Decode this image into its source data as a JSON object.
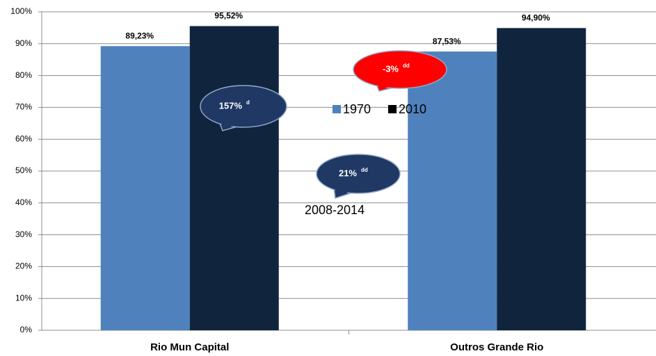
{
  "chart_data": {
    "type": "bar",
    "categories": [
      "Rio Mun Capital",
      "Outros Grande Rio"
    ],
    "series": [
      {
        "name": "1970",
        "color": "#4f81bd",
        "values": [
          89.23,
          87.53
        ],
        "value_labels": [
          "89,23%",
          "87,53%"
        ]
      },
      {
        "name": "2010",
        "color": "#10243e",
        "values": [
          95.52,
          94.9
        ],
        "value_labels": [
          "95,52%",
          "94,90%"
        ]
      }
    ],
    "ylim": [
      0,
      100
    ],
    "yticks": [
      {
        "value": 0,
        "label": "0%"
      },
      {
        "value": 10,
        "label": "10%"
      },
      {
        "value": 20,
        "label": "20%"
      },
      {
        "value": 30,
        "label": "30%"
      },
      {
        "value": 40,
        "label": "40%"
      },
      {
        "value": 50,
        "label": "50%"
      },
      {
        "value": 60,
        "label": "60%"
      },
      {
        "value": 70,
        "label": "70%"
      },
      {
        "value": 80,
        "label": "80%"
      },
      {
        "value": 90,
        "label": "90%"
      },
      {
        "value": 100,
        "label": "100%"
      }
    ],
    "grid": true,
    "legend": "center",
    "annotations": [
      {
        "text": "157%",
        "sup": "d",
        "color": "#1f3864"
      },
      {
        "text": "-3%",
        "sup": "dd",
        "color": "#ff0000"
      },
      {
        "text": "21%",
        "sup": "dd",
        "color": "#1f3864"
      }
    ],
    "note": "2008-2014"
  }
}
